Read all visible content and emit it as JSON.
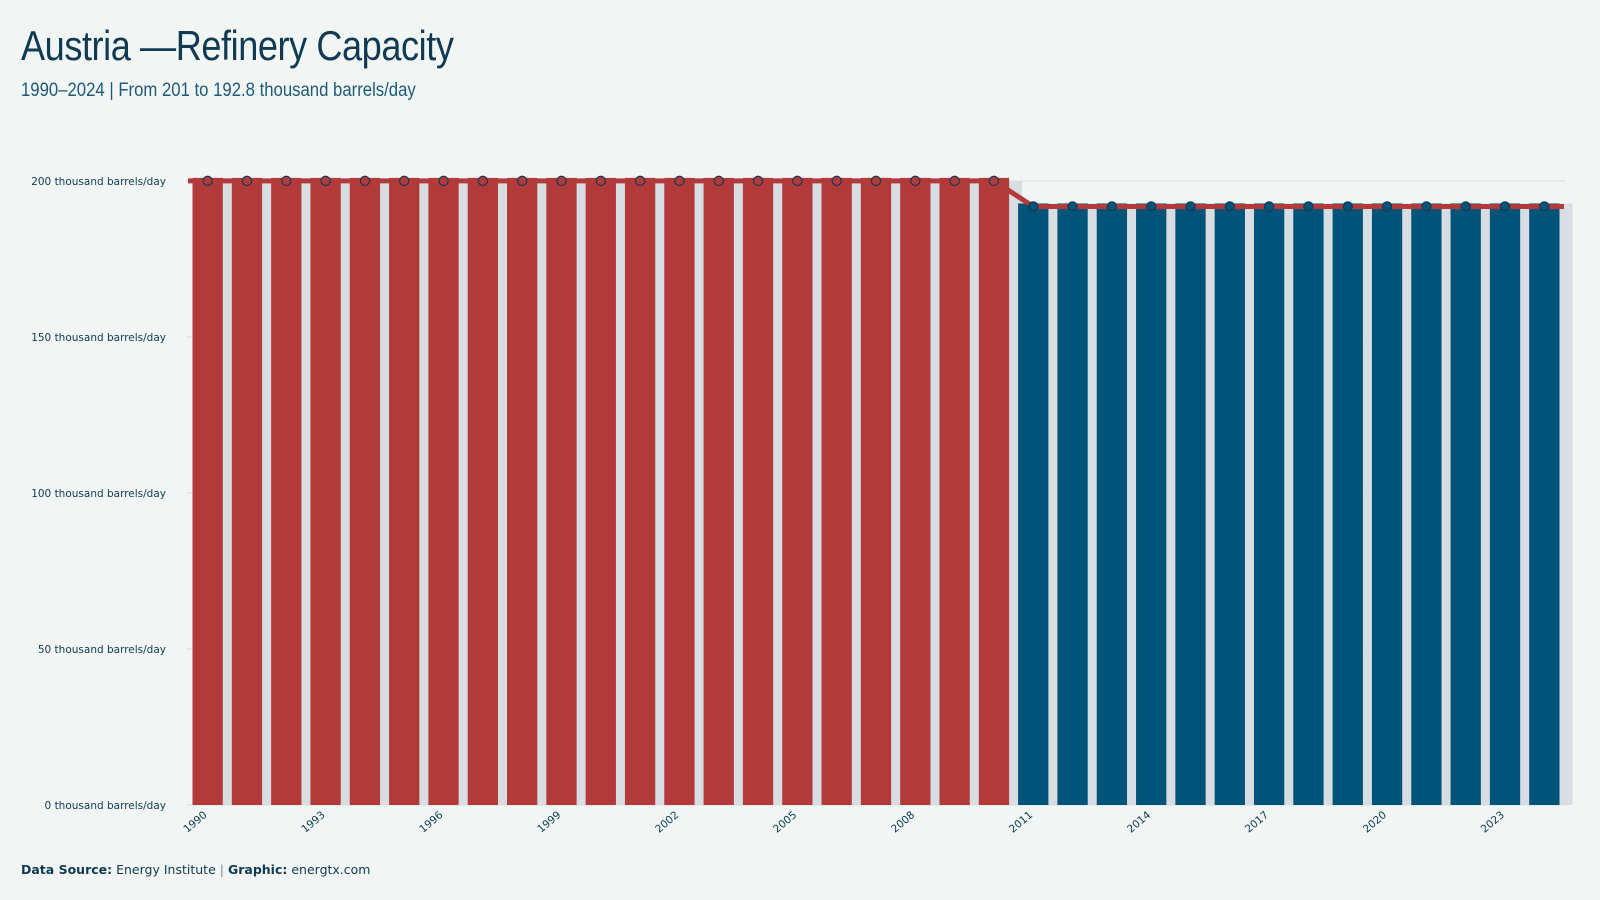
{
  "header": {
    "title": "Austria —Refinery Capacity",
    "subtitle": "1990–2024 | From 201 to 192.8 thousand barrels/day"
  },
  "footer": {
    "source_label": "Data Source:",
    "source_value": "Energy Institute",
    "separator": "|",
    "graphic_label": "Graphic:",
    "graphic_value": "energtx.com"
  },
  "colors": {
    "background": "#f1f6f5",
    "bar_early": "#b23a3b",
    "bar_late": "#005479",
    "bar_shadow": "#d7dde0",
    "line": "#b23a3b",
    "marker_early": "#b23a3b",
    "marker_late": "#005479",
    "marker_stroke": "#0f3a52",
    "grid": "#d9dfe2",
    "tick_text": "#0f3a52"
  },
  "chart_data": {
    "type": "bar",
    "title": "Austria —Refinery Capacity",
    "subtitle": "1990–2024 | From 201 to 192.8 thousand barrels/day",
    "xlabel": "",
    "ylabel": "",
    "ylim": [
      0,
      200
    ],
    "yticks": [
      0,
      50,
      100,
      150,
      200
    ],
    "ytick_labels": [
      "0 thousand barrels/day",
      "50 thousand barrels/day",
      "100 thousand barrels/day",
      "150 thousand barrels/day",
      "200 thousand barrels/day"
    ],
    "xtick_labels": [
      "1990",
      "1993",
      "1996",
      "1999",
      "2002",
      "2005",
      "2008",
      "2011",
      "2014",
      "2017",
      "2020",
      "2023"
    ],
    "grid": true,
    "categories": [
      "1990",
      "1991",
      "1992",
      "1993",
      "1994",
      "1995",
      "1996",
      "1997",
      "1998",
      "1999",
      "2000",
      "2001",
      "2002",
      "2003",
      "2004",
      "2005",
      "2006",
      "2007",
      "2008",
      "2009",
      "2010",
      "2011",
      "2012",
      "2013",
      "2014",
      "2015",
      "2016",
      "2017",
      "2018",
      "2019",
      "2020",
      "2021",
      "2022",
      "2023",
      "2024"
    ],
    "values": [
      201,
      201,
      201,
      201,
      201,
      201,
      201,
      201,
      201,
      201,
      201,
      201,
      201,
      201,
      201,
      201,
      201,
      201,
      201,
      201,
      201,
      192.8,
      192.8,
      192.8,
      192.8,
      192.8,
      192.8,
      192.8,
      192.8,
      192.8,
      192.8,
      192.8,
      192.8,
      192.8,
      192.8
    ],
    "overlay": "line with markers"
  }
}
